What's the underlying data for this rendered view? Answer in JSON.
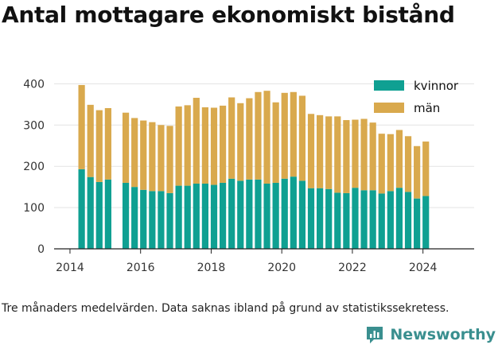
{
  "title": "Antal mottagare ekonomiskt bistånd",
  "caption": "Tre månaders medelvärden. Data saknas ibland på grund av statistikssekretess.",
  "brand": {
    "name": "Newsworthy",
    "icon": "newsworthy-logo-icon",
    "color": "#3a8f8f"
  },
  "chart_data": {
    "type": "bar",
    "stacked": true,
    "title": "Antal mottagare ekonomiskt bistånd",
    "xlabel": "",
    "ylabel": "",
    "ylim": [
      0,
      420
    ],
    "xlim": [
      2013.55,
      2025.45
    ],
    "yticks": [
      0,
      100,
      200,
      300,
      400
    ],
    "xticks": [
      2014,
      2016,
      2018,
      2020,
      2022,
      2024
    ],
    "grid": true,
    "legend_position": "top-right",
    "x": [
      2014.33,
      2014.58,
      2014.83,
      2015.08,
      2015.58,
      2015.83,
      2016.08,
      2016.33,
      2016.58,
      2016.83,
      2017.08,
      2017.33,
      2017.58,
      2017.83,
      2018.08,
      2018.33,
      2018.58,
      2018.83,
      2019.08,
      2019.33,
      2019.58,
      2019.83,
      2020.08,
      2020.33,
      2020.58,
      2020.83,
      2021.08,
      2021.33,
      2021.58,
      2021.83,
      2022.08,
      2022.33,
      2022.58,
      2022.83,
      2023.08,
      2023.33,
      2023.58,
      2023.83,
      2024.08
    ],
    "series": [
      {
        "name": "kvinnor",
        "color": "#0fa092",
        "values": [
          193,
          174,
          162,
          168,
          160,
          150,
          143,
          140,
          140,
          135,
          153,
          153,
          158,
          158,
          155,
          160,
          170,
          165,
          168,
          168,
          158,
          160,
          170,
          175,
          165,
          147,
          147,
          145,
          136,
          135,
          148,
          142,
          142,
          134,
          140,
          148,
          138,
          122,
          128
        ]
      },
      {
        "name": "män",
        "color": "#d9a94d",
        "values": [
          204,
          175,
          174,
          173,
          170,
          167,
          168,
          167,
          160,
          163,
          192,
          195,
          208,
          185,
          187,
          187,
          197,
          188,
          197,
          212,
          225,
          195,
          208,
          205,
          206,
          180,
          177,
          176,
          185,
          177,
          165,
          173,
          164,
          145,
          138,
          140,
          135,
          127,
          132
        ]
      }
    ]
  }
}
